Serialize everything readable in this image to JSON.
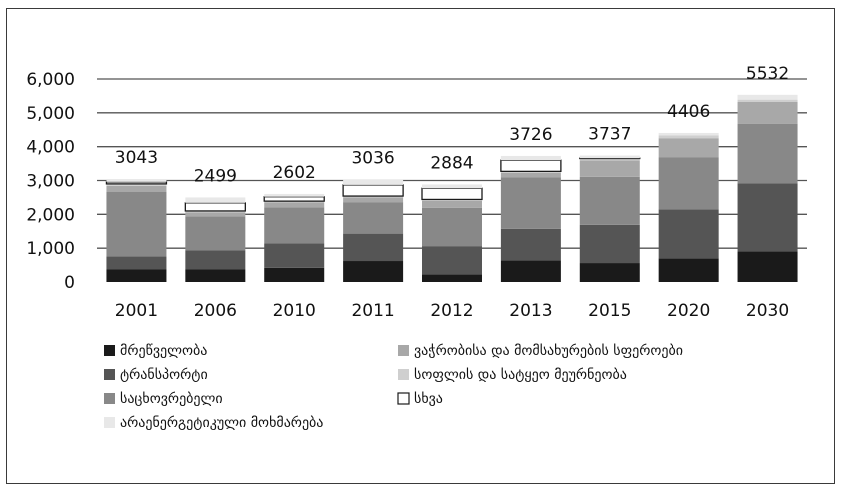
{
  "chart_data": {
    "type": "bar",
    "stacked": true,
    "categories": [
      "2001",
      "2006",
      "2010",
      "2011",
      "2012",
      "2013",
      "2015",
      "2020",
      "2030"
    ],
    "ylim": [
      0,
      6000
    ],
    "yticks": [
      "0",
      "1,000",
      "2,000",
      "3,000",
      "4,000",
      "5,000",
      "6,000"
    ],
    "ytick_values": [
      0,
      1000,
      2000,
      3000,
      4000,
      5000,
      6000
    ],
    "totals": [
      3043,
      2499,
      2602,
      3036,
      2884,
      3726,
      3737,
      4406,
      5532
    ],
    "grid": true,
    "legend_position": "bottom",
    "series": [
      {
        "name": "მრეწველობა",
        "color": "#1a1a1a",
        "values": [
          380,
          370,
          420,
          620,
          220,
          640,
          560,
          700,
          900
        ]
      },
      {
        "name": "ტრანსპორტი",
        "color": "#555555",
        "values": [
          380,
          570,
          720,
          810,
          840,
          930,
          1130,
          1450,
          2020
        ]
      },
      {
        "name": "საცხოვრებელი",
        "color": "#888888",
        "values": [
          1900,
          1000,
          1070,
          930,
          1130,
          1520,
          1420,
          1530,
          1760
        ]
      },
      {
        "name": "ვაჭრობისა და მომსახურების სფეროები",
        "color": "#a8a8a8",
        "values": [
          180,
          120,
          140,
          140,
          210,
          140,
          480,
          570,
          640
        ]
      },
      {
        "name": "სოფლის და სატყეო მეურნეობა",
        "color": "#cfcfcf",
        "values": [
          60,
          40,
          40,
          40,
          40,
          40,
          60,
          80,
          70
        ]
      },
      {
        "name": "სხვა",
        "color": "#ffffff",
        "values": [
          60,
          240,
          130,
          330,
          330,
          330,
          10,
          0,
          0
        ]
      },
      {
        "name": "არაენერგეტიკული მოხმარება",
        "color": "#e8e8e8",
        "values": [
          83,
          159,
          82,
          166,
          114,
          126,
          77,
          76,
          142
        ]
      }
    ]
  }
}
